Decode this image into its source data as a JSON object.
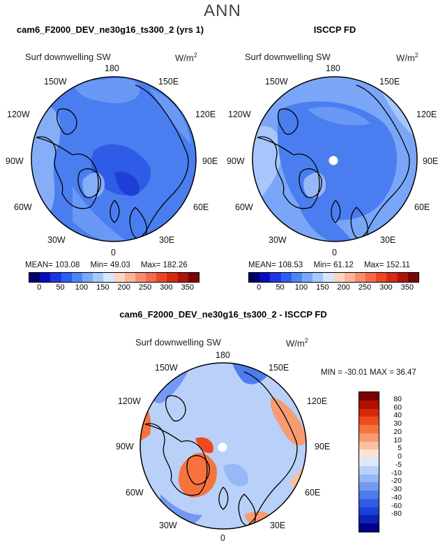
{
  "title": "ANN",
  "panels": [
    {
      "title": "cam6_F2000_DEV_ne30g16_ts300_2 (yrs 1)",
      "variable": "Surf downwelling SW",
      "units": "W/m",
      "units_exp": "2",
      "stats": {
        "mean": "MEAN= 103.08",
        "min": "Min=  49.03",
        "max": "Max= 182.26"
      }
    },
    {
      "title": "ISCCP FD",
      "variable": "Surf downwelling SW",
      "units": "W/m",
      "units_exp": "2",
      "stats": {
        "mean": "MEAN= 108.53",
        "min": "Min=  61.12",
        "max": "Max= 152.11"
      }
    }
  ],
  "diff_panel": {
    "title": "cam6_F2000_DEV_ne30g16_ts300_2 - ISCCP FD",
    "variable": "Surf downwelling SW",
    "units": "W/m",
    "units_exp": "2",
    "minmax": "MIN = -30.01  MAX =  36.47"
  },
  "longitude_labels": {
    "top": "180",
    "top_left": "150W",
    "top_right": "150E",
    "upper_left": "120W",
    "upper_right": "120E",
    "left": "90W",
    "right": "90E",
    "lower_left": "60W",
    "lower_right": "60E",
    "bottom_left": "30W",
    "bottom_right": "30E",
    "bottom": "0"
  },
  "abs_colorbar": {
    "colors": [
      "#00006b",
      "#0a0ac0",
      "#1f35e0",
      "#2c5ef0",
      "#4a86f5",
      "#7ca8fb",
      "#a7c8fb",
      "#d6e6ff",
      "#fbd7c0",
      "#fbb59a",
      "#f88d6e",
      "#f36a4c",
      "#ea4727",
      "#d22a14",
      "#ac1509",
      "#7a0505"
    ],
    "labels": [
      "0",
      "50",
      "100",
      "150",
      "200",
      "250",
      "300",
      "350"
    ]
  },
  "diff_colorbar": {
    "colors": [
      "#7a0000",
      "#b01000",
      "#d42a0c",
      "#ef4a1e",
      "#f6733e",
      "#f89a72",
      "#f9c0a2",
      "#fde2d4",
      "#dde9fb",
      "#b9d0f8",
      "#97b7f6",
      "#7399f2",
      "#4d7ced",
      "#2f5ce6",
      "#1d3fd6",
      "#0f22b8",
      "#00008a"
    ],
    "labels": [
      "80",
      "60",
      "40",
      "30",
      "20",
      "10",
      "5",
      "0",
      "-5",
      "-10",
      "-20",
      "-30",
      "-40",
      "-60",
      "-80"
    ]
  }
}
